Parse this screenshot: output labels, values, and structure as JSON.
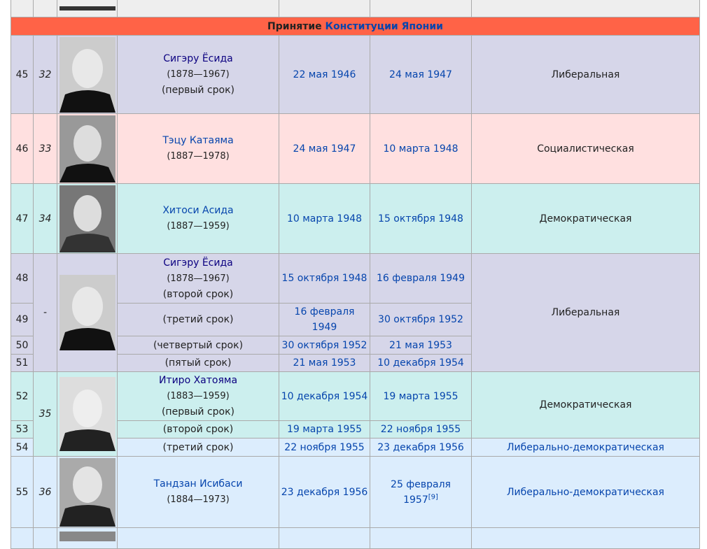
{
  "section_header": {
    "prefix": "Принятие ",
    "link": "Конституции Японии"
  },
  "rows": {
    "r45": {
      "num": "45",
      "order": "32",
      "name": "Сигэру Ёсида",
      "years": "(1878—1967)",
      "term": "(первый срок)",
      "start": "22 мая 1946",
      "end": "24 мая 1947",
      "party": "Либеральная"
    },
    "r46": {
      "num": "46",
      "order": "33",
      "name": "Тэцу Катаяма",
      "years": "(1887—1978)",
      "start": "24 мая 1947",
      "end": "10 марта 1948",
      "party": "Социалистическая"
    },
    "r47": {
      "num": "47",
      "order": "34",
      "name": "Хитоси Асида",
      "years": "(1887—1959)",
      "start": "10 марта 1948",
      "end": "15 октября 1948",
      "party": "Демократическая"
    },
    "r48": {
      "num": "48",
      "order": "-",
      "name": "Сигэру Ёсида",
      "years": "(1878—1967)",
      "term": "(второй срок)",
      "start": "15 октября 1948",
      "end": "16 февраля 1949",
      "party": "Либеральная"
    },
    "r49": {
      "num": "49",
      "term": "(третий срок)",
      "start": "16 февраля 1949",
      "end": "30 октября 1952"
    },
    "r50": {
      "num": "50",
      "term": "(четвертый срок)",
      "start": "30 октября 1952",
      "end": "21 мая 1953"
    },
    "r51": {
      "num": "51",
      "term": "(пятый срок)",
      "start": "21 мая 1953",
      "end": "10 декабря 1954"
    },
    "r52": {
      "num": "52",
      "order": "35",
      "name": "Итиро Хатояма",
      "years": "(1883—1959)",
      "term": "(первый срок)",
      "start": "10 декабря 1954",
      "end": "19 марта 1955",
      "party": "Демократическая"
    },
    "r53": {
      "num": "53",
      "term": "(второй срок)",
      "start": "19 марта 1955",
      "end": "22 ноября 1955"
    },
    "r54": {
      "num": "54",
      "term": "(третий срок)",
      "start": "22 ноября 1955",
      "end": "23 декабря 1956",
      "party": "Либерально-демократическая"
    },
    "r55": {
      "num": "55",
      "order": "36",
      "name": "Тандзан Исибаси",
      "years": "(1884—1973)",
      "start": "23 декабря 1956",
      "end": "25 февраля 1957",
      "ref": "[9]",
      "party": "Либерально-демократическая"
    }
  }
}
